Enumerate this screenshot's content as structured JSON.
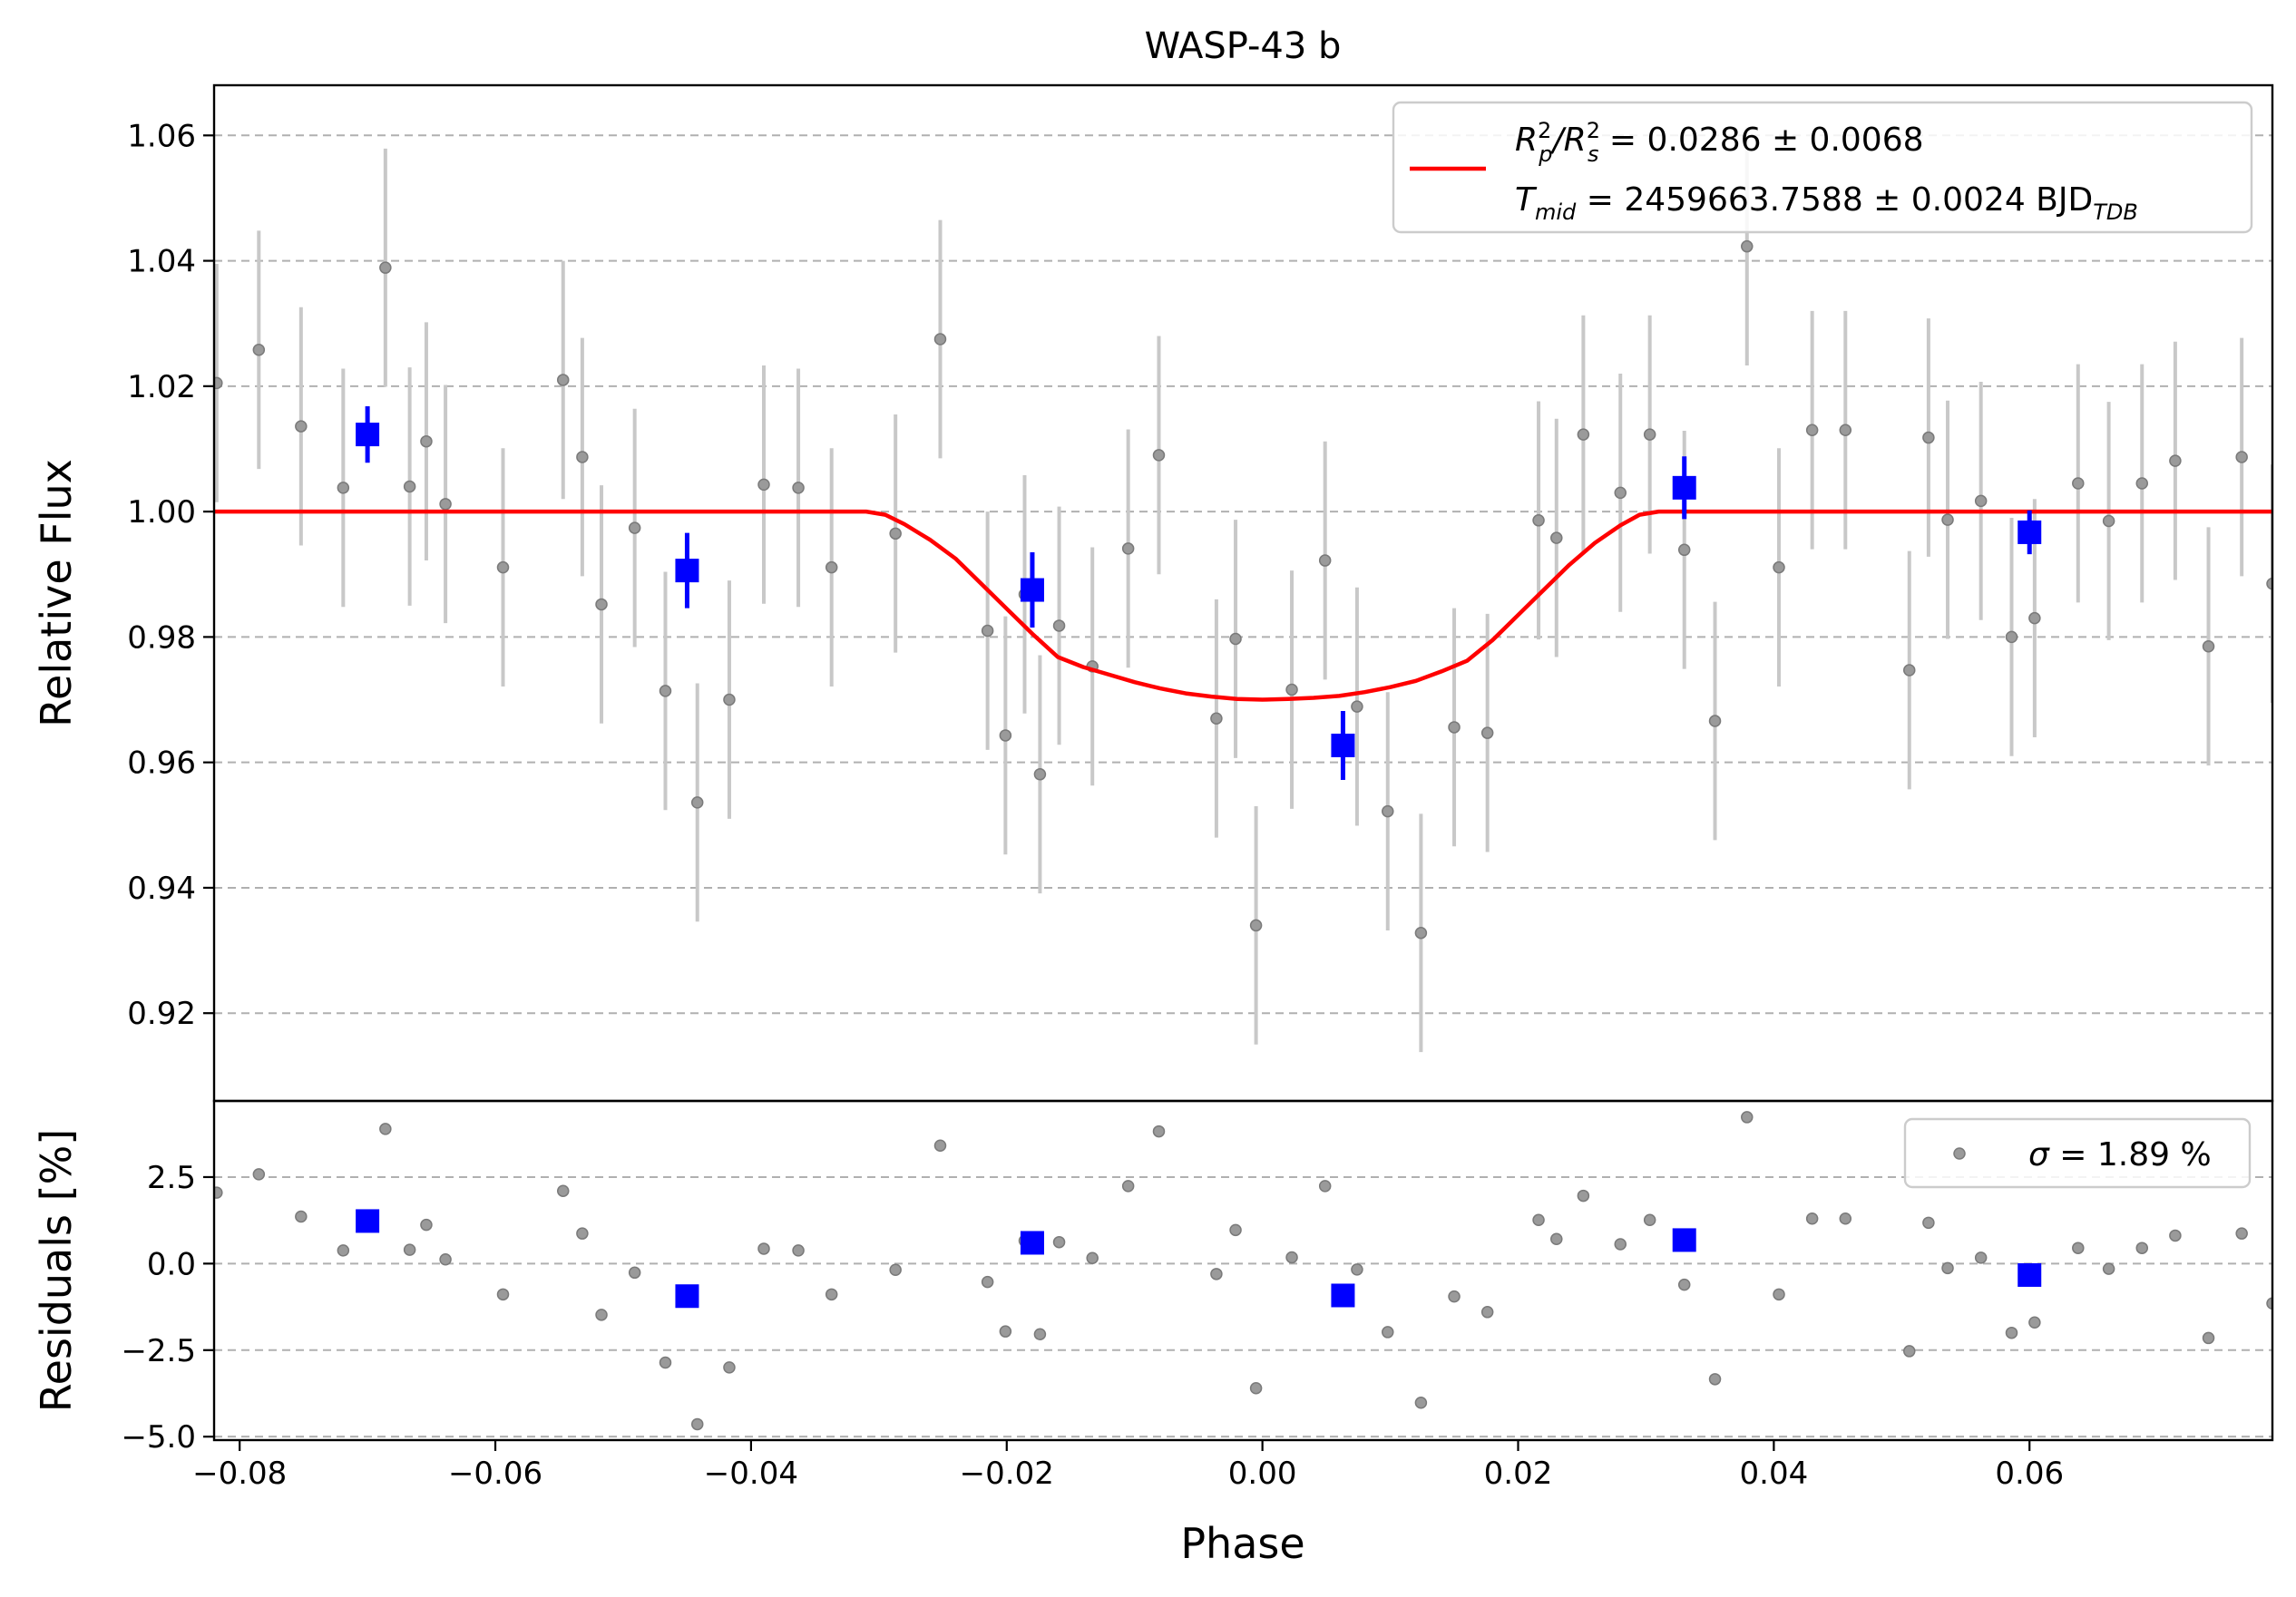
{
  "chart_data": {
    "type": "scatter",
    "title": "WASP-43 b",
    "xlabel": "Phase",
    "xlim": [
      -0.082,
      0.079
    ],
    "x_ticks": [
      -0.08,
      -0.06,
      -0.04,
      -0.02,
      0.0,
      0.02,
      0.04,
      0.06
    ],
    "x_tick_labels": [
      "−0.08",
      "−0.06",
      "−0.04",
      "−0.02",
      "0.00",
      "0.02",
      "0.04",
      "0.06"
    ],
    "grid": "horizontal dashed",
    "top_panel": {
      "ylabel": "Relative Flux",
      "ylim": [
        0.906,
        1.068
      ],
      "y_ticks": [
        0.92,
        0.94,
        0.96,
        0.98,
        1.0,
        1.02,
        1.04,
        1.06
      ],
      "y_tick_labels": [
        "0.92",
        "0.94",
        "0.96",
        "0.98",
        "1.00",
        "1.02",
        "1.04",
        "1.06"
      ],
      "legend": {
        "placement": "top-right",
        "line1_main": "R",
        "line1_sup1": "2",
        "line1_sub1": "p",
        "line1_slash": "/R",
        "line1_sup2": "2",
        "line1_sub2": "s",
        "line1_value": " = 0.0286 ± 0.0068",
        "line2_main": "T",
        "line2_sub": "mid",
        "line2_value": " = 2459663.7588 ± 0.0024 BJD",
        "line2_unit_sub": "TDB"
      },
      "unbinned_points": [
        {
          "x": -0.0818,
          "y": 1.0205,
          "err": 0.019
        },
        {
          "x": -0.0785,
          "y": 1.0258,
          "err": 0.019
        },
        {
          "x": -0.0752,
          "y": 1.0136,
          "err": 0.019
        },
        {
          "x": -0.0719,
          "y": 1.0038,
          "err": 0.019
        },
        {
          "x": -0.0686,
          "y": 1.0389,
          "err": 0.019
        },
        {
          "x": -0.0667,
          "y": 1.004,
          "err": 0.019
        },
        {
          "x": -0.0654,
          "y": 1.0112,
          "err": 0.019
        },
        {
          "x": -0.0639,
          "y": 1.0012,
          "err": 0.019
        },
        {
          "x": -0.0594,
          "y": 0.9911,
          "err": 0.019
        },
        {
          "x": -0.0547,
          "y": 1.021,
          "err": 0.019
        },
        {
          "x": -0.0532,
          "y": 1.0087,
          "err": 0.019
        },
        {
          "x": -0.0517,
          "y": 0.9852,
          "err": 0.019
        },
        {
          "x": -0.0491,
          "y": 0.9974,
          "err": 0.019
        },
        {
          "x": -0.0467,
          "y": 0.9714,
          "err": 0.019
        },
        {
          "x": -0.0442,
          "y": 0.9536,
          "err": 0.019
        },
        {
          "x": -0.0417,
          "y": 0.97,
          "err": 0.019
        },
        {
          "x": -0.039,
          "y": 1.0043,
          "err": 0.019
        },
        {
          "x": -0.0363,
          "y": 1.0038,
          "err": 0.019
        },
        {
          "x": -0.0337,
          "y": 0.9911,
          "err": 0.019
        },
        {
          "x": -0.0287,
          "y": 0.9965,
          "err": 0.019
        },
        {
          "x": -0.0252,
          "y": 1.0275,
          "err": 0.019
        },
        {
          "x": -0.0215,
          "y": 0.981,
          "err": 0.019
        },
        {
          "x": -0.0201,
          "y": 0.9643,
          "err": 0.019
        },
        {
          "x": -0.0186,
          "y": 0.9868,
          "err": 0.019
        },
        {
          "x": -0.0174,
          "y": 0.9581,
          "err": 0.019
        },
        {
          "x": -0.0159,
          "y": 0.9818,
          "err": 0.019
        },
        {
          "x": -0.0133,
          "y": 0.9753,
          "err": 0.019
        },
        {
          "x": -0.0105,
          "y": 0.9941,
          "err": 0.019
        },
        {
          "x": -0.0081,
          "y": 1.009,
          "err": 0.019
        },
        {
          "x": -0.0036,
          "y": 0.967,
          "err": 0.019
        },
        {
          "x": -0.0021,
          "y": 0.9797,
          "err": 0.019
        },
        {
          "x": -0.0005,
          "y": 0.934,
          "err": 0.019
        },
        {
          "x": 0.0023,
          "y": 0.9716,
          "err": 0.019
        },
        {
          "x": 0.0049,
          "y": 0.9922,
          "err": 0.019
        },
        {
          "x": 0.0074,
          "y": 0.9689,
          "err": 0.019
        },
        {
          "x": 0.0098,
          "y": 0.9522,
          "err": 0.019
        },
        {
          "x": 0.0124,
          "y": 0.9328,
          "err": 0.019
        },
        {
          "x": 0.015,
          "y": 0.9656,
          "err": 0.019
        },
        {
          "x": 0.0176,
          "y": 0.9647,
          "err": 0.019
        },
        {
          "x": 0.0216,
          "y": 0.9986,
          "err": 0.019
        },
        {
          "x": 0.023,
          "y": 0.9958,
          "err": 0.019
        },
        {
          "x": 0.0251,
          "y": 1.0123,
          "err": 0.019
        },
        {
          "x": 0.028,
          "y": 1.003,
          "err": 0.019
        },
        {
          "x": 0.0303,
          "y": 1.0123,
          "err": 0.019
        },
        {
          "x": 0.033,
          "y": 0.9939,
          "err": 0.019
        },
        {
          "x": 0.0354,
          "y": 0.9666,
          "err": 0.019
        },
        {
          "x": 0.0379,
          "y": 1.0423,
          "err": 0.019
        },
        {
          "x": 0.0404,
          "y": 0.9911,
          "err": 0.019
        },
        {
          "x": 0.043,
          "y": 1.013,
          "err": 0.019
        },
        {
          "x": 0.0456,
          "y": 1.013,
          "err": 0.019
        },
        {
          "x": 0.0506,
          "y": 0.9747,
          "err": 0.019
        },
        {
          "x": 0.0521,
          "y": 1.0118,
          "err": 0.019
        },
        {
          "x": 0.0536,
          "y": 0.9987,
          "err": 0.019
        },
        {
          "x": 0.0562,
          "y": 1.0017,
          "err": 0.019
        },
        {
          "x": 0.0586,
          "y": 0.98,
          "err": 0.019
        },
        {
          "x": 0.0604,
          "y": 0.983,
          "err": 0.019
        },
        {
          "x": 0.0638,
          "y": 1.0045,
          "err": 0.019
        },
        {
          "x": 0.0662,
          "y": 0.9985,
          "err": 0.019
        },
        {
          "x": 0.0688,
          "y": 1.0045,
          "err": 0.019
        },
        {
          "x": 0.0714,
          "y": 1.0081,
          "err": 0.019
        },
        {
          "x": 0.074,
          "y": 0.9785,
          "err": 0.019
        },
        {
          "x": 0.0766,
          "y": 1.0087,
          "err": 0.019
        },
        {
          "x": 0.079,
          "y": 0.9885,
          "err": 0.019
        }
      ],
      "binned_points": [
        {
          "x": -0.07,
          "y": 1.0123,
          "err": 0.0045
        },
        {
          "x": -0.045,
          "y": 0.9906,
          "err": 0.006
        },
        {
          "x": -0.018,
          "y": 0.9875,
          "err": 0.006
        },
        {
          "x": 0.0063,
          "y": 0.9627,
          "err": 0.0055
        },
        {
          "x": 0.033,
          "y": 1.0038,
          "err": 0.005
        },
        {
          "x": 0.06,
          "y": 0.9967,
          "err": 0.0035
        }
      ],
      "model_curve": [
        [
          -0.082,
          1.0
        ],
        [
          -0.031,
          1.0
        ],
        [
          -0.0295,
          0.9995
        ],
        [
          -0.028,
          0.998
        ],
        [
          -0.026,
          0.9955
        ],
        [
          -0.024,
          0.9925
        ],
        [
          -0.022,
          0.9885
        ],
        [
          -0.02,
          0.9845
        ],
        [
          -0.018,
          0.9805
        ],
        [
          -0.016,
          0.9768
        ],
        [
          -0.014,
          0.9752
        ],
        [
          -0.012,
          0.974
        ],
        [
          -0.01,
          0.9728
        ],
        [
          -0.008,
          0.9718
        ],
        [
          -0.006,
          0.971
        ],
        [
          -0.004,
          0.9705
        ],
        [
          -0.002,
          0.9701
        ],
        [
          0.0,
          0.97
        ],
        [
          0.002,
          0.9701
        ],
        [
          0.004,
          0.9703
        ],
        [
          0.006,
          0.9706
        ],
        [
          0.008,
          0.9712
        ],
        [
          0.01,
          0.972
        ],
        [
          0.012,
          0.973
        ],
        [
          0.014,
          0.9745
        ],
        [
          0.016,
          0.9762
        ],
        [
          0.018,
          0.9795
        ],
        [
          0.02,
          0.9835
        ],
        [
          0.022,
          0.9875
        ],
        [
          0.024,
          0.9915
        ],
        [
          0.026,
          0.995
        ],
        [
          0.028,
          0.9978
        ],
        [
          0.0295,
          0.9995
        ],
        [
          0.031,
          1.0
        ],
        [
          0.079,
          1.0
        ]
      ]
    },
    "bottom_panel": {
      "ylabel": "Residuals [%]",
      "ylim": [
        -5.1,
        4.7
      ],
      "y_ticks": [
        -5.0,
        -2.5,
        0.0,
        2.5
      ],
      "y_tick_labels": [
        "−5.0",
        "−2.5",
        "0.0",
        "2.5"
      ],
      "legend": {
        "placement": "top-right",
        "symbol": "σ",
        "text": " = 1.89 %"
      },
      "unbinned_points": [
        {
          "x": -0.0818,
          "y": 2.05
        },
        {
          "x": -0.0785,
          "y": 2.58
        },
        {
          "x": -0.0752,
          "y": 1.36
        },
        {
          "x": -0.0719,
          "y": 0.38
        },
        {
          "x": -0.0686,
          "y": 3.89
        },
        {
          "x": -0.0667,
          "y": 0.4
        },
        {
          "x": -0.0654,
          "y": 1.12
        },
        {
          "x": -0.0639,
          "y": 0.12
        },
        {
          "x": -0.0594,
          "y": -0.89
        },
        {
          "x": -0.0547,
          "y": 2.1
        },
        {
          "x": -0.0532,
          "y": 0.87
        },
        {
          "x": -0.0517,
          "y": -1.48
        },
        {
          "x": -0.0491,
          "y": -0.26
        },
        {
          "x": -0.0467,
          "y": -2.86
        },
        {
          "x": -0.0442,
          "y": -4.64
        },
        {
          "x": -0.0417,
          "y": -3.0
        },
        {
          "x": -0.039,
          "y": 0.43
        },
        {
          "x": -0.0363,
          "y": 0.38
        },
        {
          "x": -0.0337,
          "y": -0.89
        },
        {
          "x": -0.0287,
          "y": -0.18
        },
        {
          "x": -0.0252,
          "y": 3.41
        },
        {
          "x": -0.0215,
          "y": -0.53
        },
        {
          "x": -0.0201,
          "y": -1.96
        },
        {
          "x": -0.0186,
          "y": 0.66
        },
        {
          "x": -0.0174,
          "y": -2.04
        },
        {
          "x": -0.0159,
          "y": 0.62
        },
        {
          "x": -0.0133,
          "y": 0.16
        },
        {
          "x": -0.0105,
          "y": 2.24
        },
        {
          "x": -0.0081,
          "y": 3.82
        },
        {
          "x": -0.0036,
          "y": -0.3
        },
        {
          "x": -0.0021,
          "y": 0.97
        },
        {
          "x": -0.0005,
          "y": -3.6
        },
        {
          "x": 0.0023,
          "y": 0.18
        },
        {
          "x": 0.0049,
          "y": 2.24
        },
        {
          "x": 0.0074,
          "y": -0.17
        },
        {
          "x": 0.0098,
          "y": -1.98
        },
        {
          "x": 0.0124,
          "y": -4.02
        },
        {
          "x": 0.015,
          "y": -0.95
        },
        {
          "x": 0.0176,
          "y": -1.4
        },
        {
          "x": 0.0216,
          "y": 1.26
        },
        {
          "x": 0.023,
          "y": 0.71
        },
        {
          "x": 0.0251,
          "y": 1.96
        },
        {
          "x": 0.028,
          "y": 0.56
        },
        {
          "x": 0.0303,
          "y": 1.26
        },
        {
          "x": 0.033,
          "y": -0.61
        },
        {
          "x": 0.0354,
          "y": -3.34
        },
        {
          "x": 0.0379,
          "y": 4.23
        },
        {
          "x": 0.0404,
          "y": -0.89
        },
        {
          "x": 0.043,
          "y": 1.3
        },
        {
          "x": 0.0456,
          "y": 1.3
        },
        {
          "x": 0.0506,
          "y": -2.53
        },
        {
          "x": 0.0521,
          "y": 1.18
        },
        {
          "x": 0.0536,
          "y": -0.13
        },
        {
          "x": 0.0562,
          "y": 0.17
        },
        {
          "x": 0.0586,
          "y": -2.0
        },
        {
          "x": 0.0604,
          "y": -1.7
        },
        {
          "x": 0.0638,
          "y": 0.45
        },
        {
          "x": 0.0662,
          "y": -0.15
        },
        {
          "x": 0.0688,
          "y": 0.45
        },
        {
          "x": 0.0714,
          "y": 0.81
        },
        {
          "x": 0.074,
          "y": -2.15
        },
        {
          "x": 0.0766,
          "y": 0.87
        },
        {
          "x": 0.079,
          "y": -1.15
        }
      ],
      "binned_points": [
        {
          "x": -0.07,
          "y": 1.23
        },
        {
          "x": -0.045,
          "y": -0.94
        },
        {
          "x": -0.018,
          "y": 0.6
        },
        {
          "x": 0.0063,
          "y": -0.92
        },
        {
          "x": 0.033,
          "y": 0.68
        },
        {
          "x": 0.06,
          "y": -0.33
        }
      ]
    },
    "colors": {
      "model": "#ff0000",
      "binned": "#0000ff",
      "unbinned_marker": "#9a9a9a",
      "unbinned_errorbar": "#c8c8c8",
      "grid": "#b0b0b0",
      "legend_border": "#cccccc"
    }
  }
}
